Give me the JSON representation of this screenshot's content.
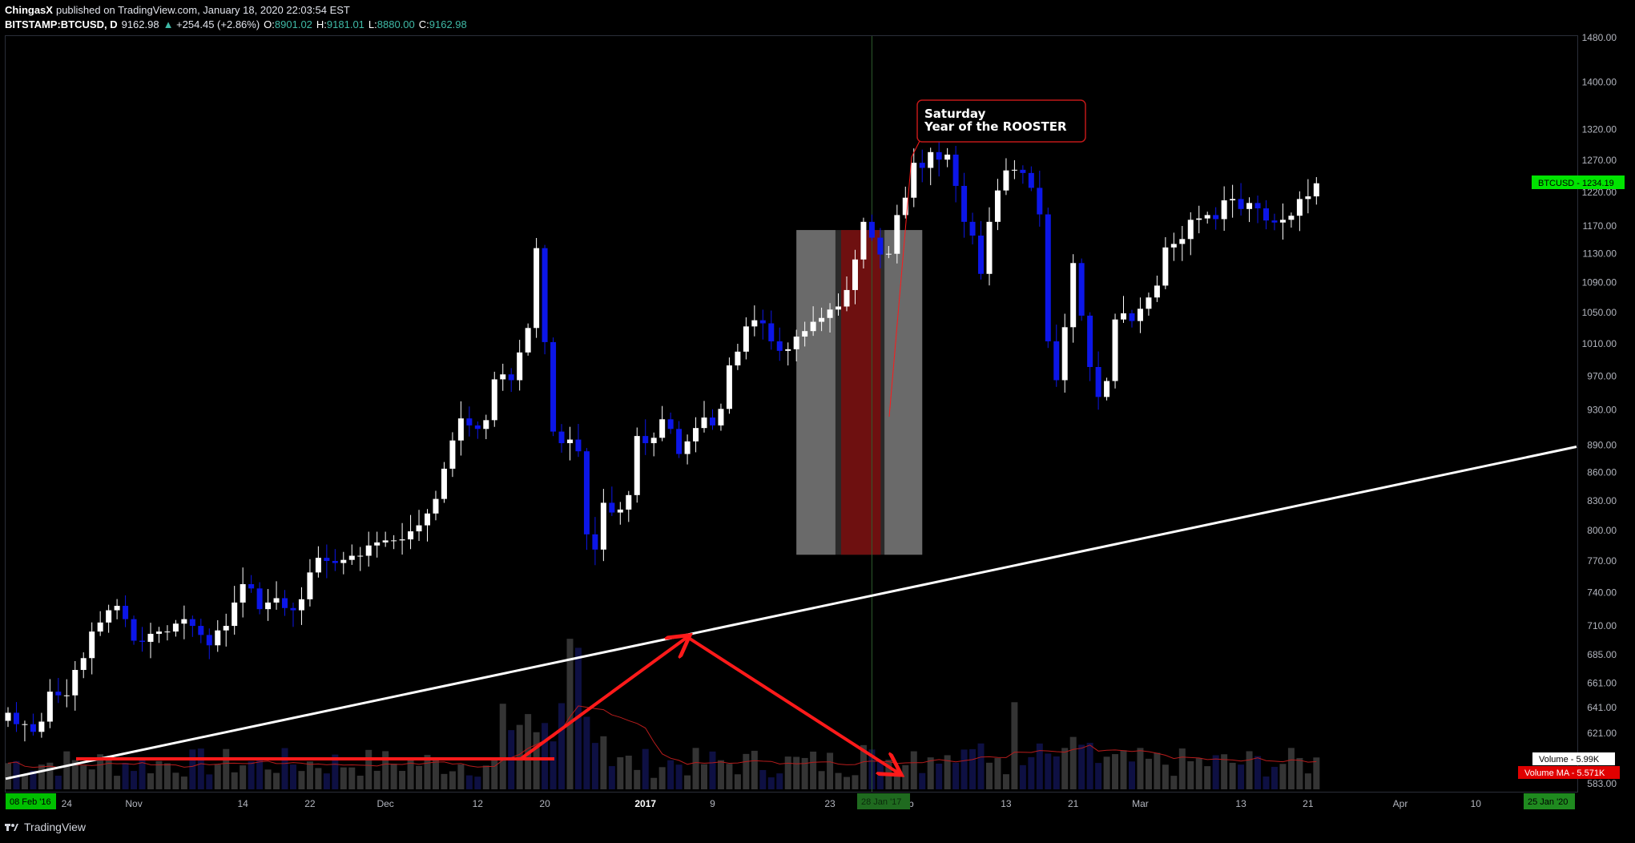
{
  "header": {
    "author": "ChingasX",
    "published_text": "published on TradingView.com, January 18, 2020 22:03:54 EST",
    "symbol": "BITSTAMP:BTCUSD, D",
    "last_price": "9162.98",
    "change": "+254.45 (+2.86%)",
    "o_label": "O:",
    "o_value": "8901.02",
    "h_label": "H:",
    "h_value": "9181.01",
    "l_label": "L:",
    "l_value": "8880.00",
    "c_label": "C:",
    "c_value": "9162.98"
  },
  "footer": {
    "brand": "TradingView"
  },
  "colors": {
    "up_candle": "#ffffff",
    "down_candle": "#0c16e8",
    "volume_bar": "#3a3a3a",
    "volume_ma": "#b71c1c",
    "trendline": "#ffffff",
    "annotation": "#ff1a1a",
    "price_tag": "#00e400",
    "time_tag": "#1f8a1f"
  },
  "annotation": {
    "line1": "Saturday",
    "line2": "Year of the ROOSTER"
  },
  "price_tag": {
    "text": "BTCUSD - 1234.19"
  },
  "volume_tag": {
    "text": "Volume - 5.99K"
  },
  "volume_ma_tag": {
    "text": "Volume MA - 5.571K"
  },
  "time_tags": {
    "left": "08 Feb '16",
    "mid": "28 Jan '17",
    "right": "25 Jan '20"
  },
  "chart_data": {
    "type": "candlestick",
    "symbol": "BITSTAMP:BTCUSD",
    "interval": "D",
    "y_scale": "log",
    "ylim": [
      583,
      1480
    ],
    "y_ticks": [
      "1480.00",
      "1400.00",
      "1320.00",
      "1270.00",
      "1220.00",
      "1170.00",
      "1130.00",
      "1090.00",
      "1050.00",
      "1010.00",
      "970.00",
      "930.00",
      "890.00",
      "860.00",
      "830.00",
      "800.00",
      "770.00",
      "740.00",
      "710.00",
      "685.00",
      "661.00",
      "641.00",
      "621.00",
      "583.00"
    ],
    "x_ticks": [
      "24",
      "Nov",
      "14",
      "22",
      "Dec",
      "12",
      "20",
      "2017",
      "9",
      "23",
      "Feb",
      "13",
      "21",
      "Mar",
      "13",
      "21",
      "Apr",
      "10"
    ],
    "grid": false,
    "closes": [
      637,
      628,
      628,
      622,
      630,
      654,
      651,
      651,
      672,
      682,
      705,
      713,
      724,
      728,
      716,
      697,
      696,
      703,
      705,
      705,
      712,
      716,
      710,
      702,
      693,
      706,
      710,
      731,
      748,
      744,
      725,
      731,
      735,
      726,
      724,
      734,
      759,
      773,
      770,
      768,
      771,
      775,
      775,
      785,
      788,
      790,
      790,
      791,
      799,
      805,
      817,
      832,
      864,
      895,
      920,
      912,
      908,
      918,
      966,
      972,
      965,
      999,
      1030,
      1138,
      1012,
      905,
      892,
      896,
      883,
      796,
      781,
      828,
      818,
      821,
      836,
      900,
      892,
      898,
      919,
      908,
      880,
      894,
      909,
      921,
      912,
      931,
      983,
      1000,
      1032,
      1040,
      1036,
      1013,
      1001,
      1003,
      1019,
      1026,
      1038,
      1043,
      1054,
      1058,
      1080,
      1122,
      1176,
      1153,
      1129,
      1130,
      1186,
      1212,
      1266,
      1258,
      1283,
      1271,
      1279,
      1230,
      1176,
      1156,
      1102,
      1176,
      1223,
      1254,
      1255,
      1250,
      1227,
      1187,
      1013,
      965,
      1031,
      1117,
      1046,
      981,
      945,
      964,
      1041,
      1049,
      1039,
      1055,
      1070,
      1086,
      1139,
      1144,
      1151,
      1179,
      1181,
      1186,
      1180,
      1208,
      1210,
      1195,
      1204,
      1196,
      1178,
      1175,
      1179,
      1185,
      1210,
      1214,
      1234
    ],
    "trendline": {
      "from": {
        "x": "2016-10-17",
        "y": 587
      },
      "to": {
        "x": "2017-04-22",
        "y": 888
      }
    },
    "annotation_box": {
      "x_start": "2017-01-19",
      "x_end": "2017-02-03",
      "y_low": 776,
      "y_high": 1164
    }
  }
}
